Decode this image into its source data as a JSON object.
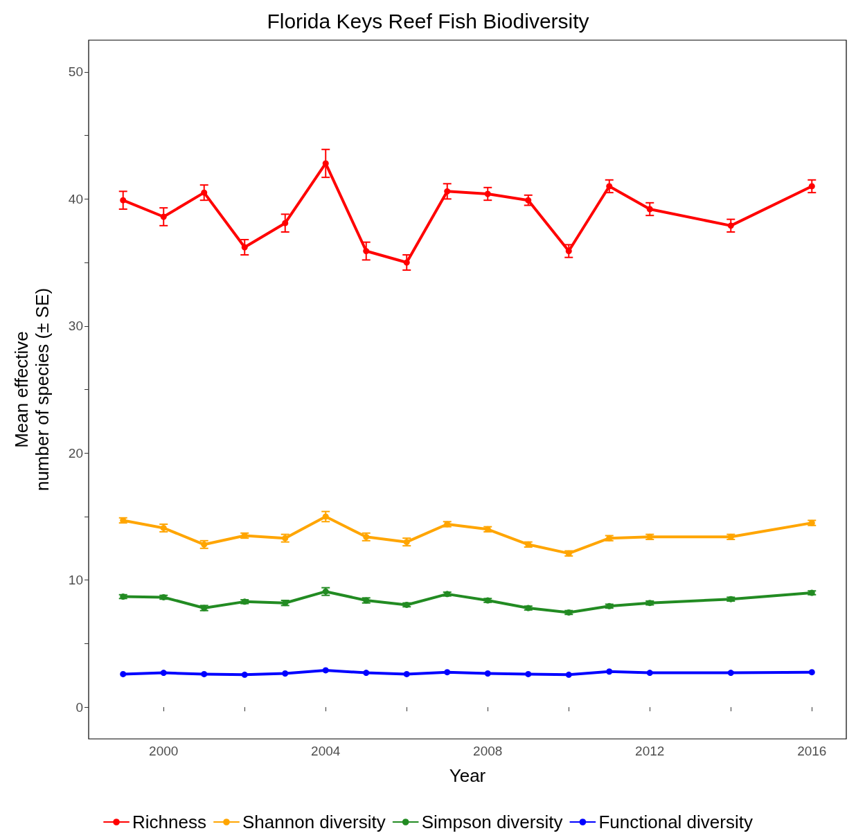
{
  "chart_data": {
    "type": "line",
    "title": "Florida Keys Reef Fish Biodiversity",
    "xlabel": "Year",
    "ylabel": "Mean effective\nnumber of species (± SE)",
    "x": [
      1999,
      2000,
      2001,
      2002,
      2003,
      2004,
      2005,
      2006,
      2007,
      2008,
      2009,
      2010,
      2011,
      2012,
      2014,
      2016
    ],
    "series": [
      {
        "name": "Richness",
        "color": "#ff0000",
        "values": [
          39.9,
          38.6,
          40.5,
          36.2,
          38.1,
          42.8,
          35.9,
          35.0,
          40.6,
          40.4,
          39.9,
          35.9,
          41.0,
          39.2,
          37.9,
          41.0
        ],
        "errors": [
          0.7,
          0.7,
          0.6,
          0.6,
          0.7,
          1.1,
          0.7,
          0.6,
          0.6,
          0.5,
          0.4,
          0.5,
          0.5,
          0.5,
          0.5,
          0.5
        ]
      },
      {
        "name": "Shannon diversity",
        "color": "#ffa500",
        "values": [
          14.7,
          14.1,
          12.8,
          13.5,
          13.3,
          15.0,
          13.4,
          13.0,
          14.4,
          14.0,
          12.8,
          12.1,
          13.3,
          13.4,
          13.4,
          14.5
        ],
        "errors": [
          0.2,
          0.3,
          0.3,
          0.2,
          0.3,
          0.4,
          0.3,
          0.3,
          0.2,
          0.2,
          0.2,
          0.2,
          0.2,
          0.2,
          0.2,
          0.2
        ]
      },
      {
        "name": "Simpson diversity",
        "color": "#228b22",
        "values": [
          8.7,
          8.65,
          7.8,
          8.3,
          8.2,
          9.1,
          8.4,
          8.05,
          8.9,
          8.4,
          7.8,
          7.45,
          7.95,
          8.2,
          8.5,
          9.0
        ],
        "errors": [
          0.15,
          0.15,
          0.2,
          0.15,
          0.2,
          0.3,
          0.2,
          0.15,
          0.15,
          0.15,
          0.15,
          0.15,
          0.15,
          0.15,
          0.15,
          0.15
        ]
      },
      {
        "name": "Functional diversity",
        "color": "#0000ff",
        "values": [
          2.6,
          2.7,
          2.6,
          2.55,
          2.65,
          2.9,
          2.7,
          2.6,
          2.75,
          2.65,
          2.6,
          2.55,
          2.8,
          2.7,
          2.7,
          2.75
        ]
      }
    ],
    "xlim": [
      1998.15,
      2016.85
    ],
    "xticks": [
      2000,
      {
        "value": 2002,
        "label": null
      },
      2004,
      {
        "value": 2006,
        "label": null
      },
      2008,
      {
        "value": 2010,
        "label": null
      },
      2012,
      {
        "value": 2014,
        "label": null
      },
      2016
    ],
    "ylim": [
      -2.5,
      52.5
    ],
    "yticks": [
      0,
      {
        "value": 5,
        "label": null
      },
      10,
      {
        "value": 15,
        "label": null
      },
      20,
      {
        "value": 25,
        "label": null
      },
      30,
      {
        "value": 35,
        "label": null
      },
      40,
      {
        "value": 45,
        "label": null
      },
      50
    ],
    "grid": false,
    "legend": "bottom",
    "marker": "circle",
    "line_style": "solid"
  }
}
